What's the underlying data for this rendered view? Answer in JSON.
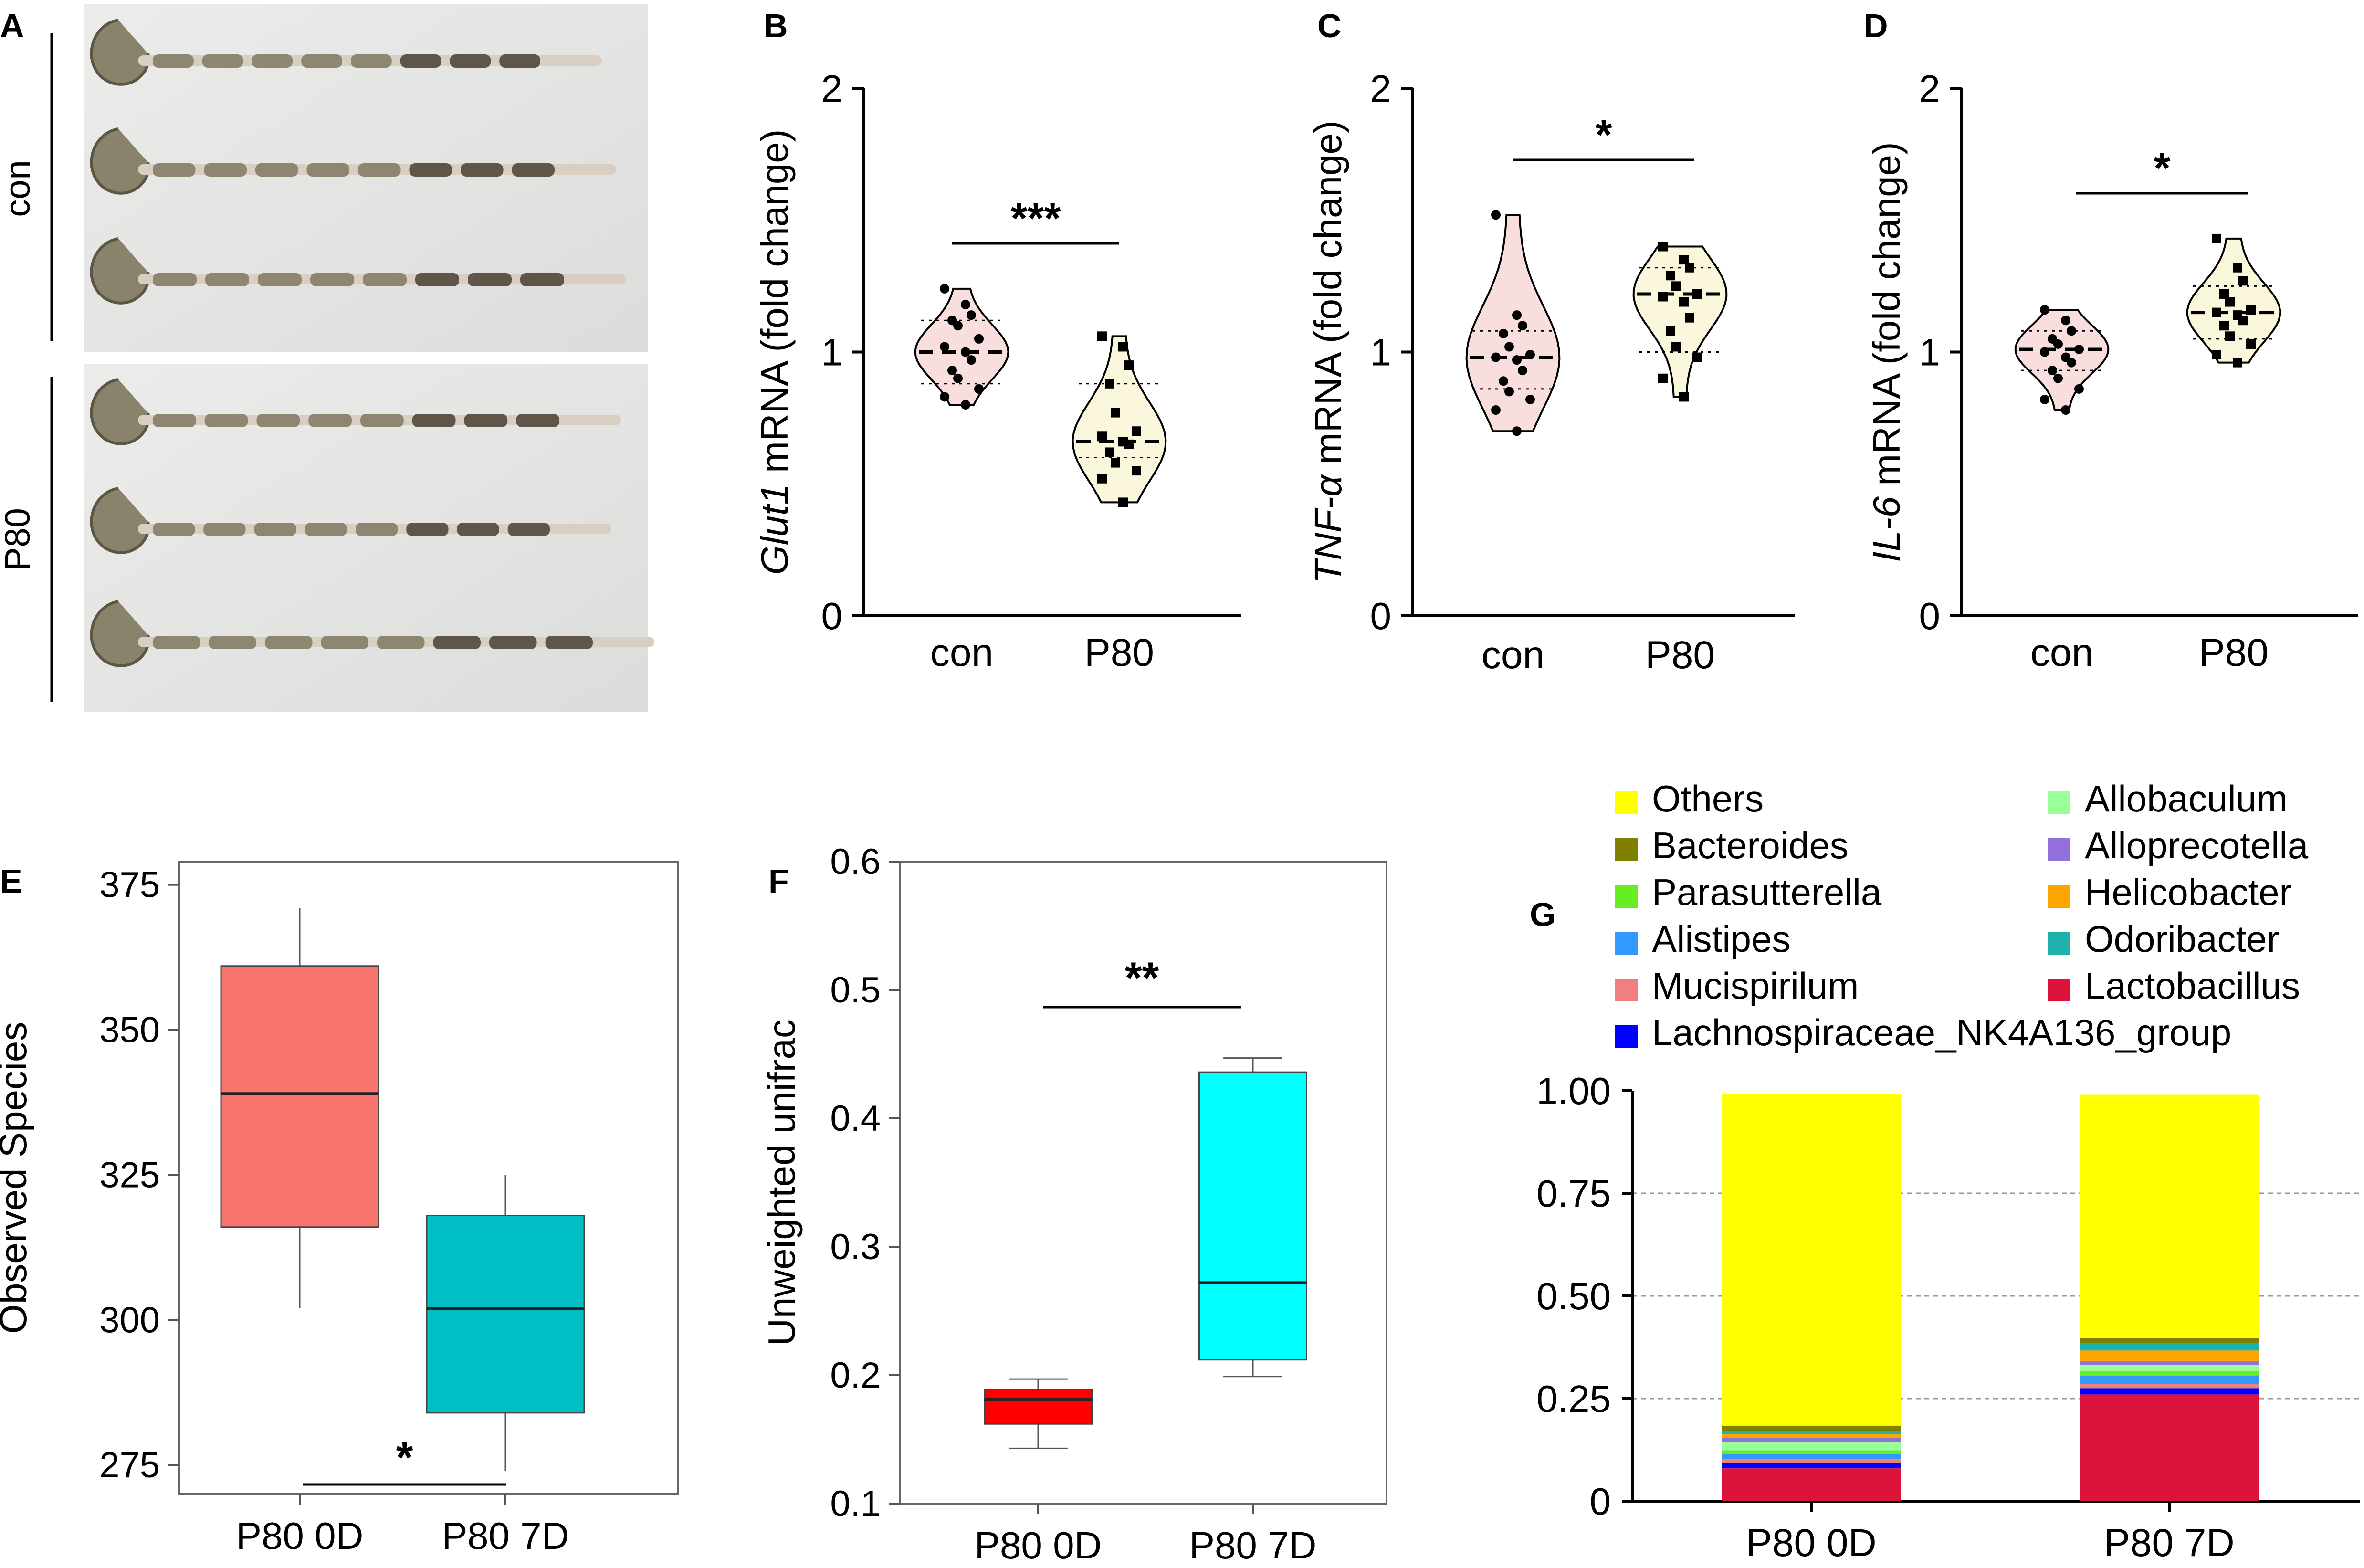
{
  "panel_labels": {
    "a": "A",
    "b": "B",
    "c": "C",
    "d": "D",
    "e": "E",
    "f": "F",
    "g": "G"
  },
  "panel_a": {
    "group_top": "con",
    "group_bottom": "P80"
  },
  "chart_data": [
    {
      "id": "B",
      "type": "violin",
      "title": "",
      "ylabel_italic": "Glut1",
      "ylabel_rest": " mRNA (fold change)",
      "categories": [
        "con",
        "P80"
      ],
      "ylim": [
        0,
        2
      ],
      "yticks": [
        "0",
        "1",
        "2"
      ],
      "significance": "***",
      "series": [
        {
          "name": "con",
          "marker": "circle",
          "fill": "#f9dede",
          "median": 1.0,
          "q1": 0.88,
          "q3": 1.12,
          "min": 0.8,
          "max": 1.24,
          "points": [
            1.24,
            1.18,
            1.14,
            1.12,
            1.1,
            1.05,
            1.02,
            1.0,
            0.97,
            0.93,
            0.9,
            0.86,
            0.83,
            0.8
          ]
        },
        {
          "name": "P80",
          "marker": "square",
          "fill": "#fbf7dc",
          "median": 0.66,
          "q1": 0.6,
          "q3": 0.88,
          "min": 0.43,
          "max": 1.06,
          "points": [
            1.06,
            1.02,
            0.95,
            0.88,
            0.77,
            0.7,
            0.68,
            0.66,
            0.65,
            0.62,
            0.58,
            0.55,
            0.52,
            0.43
          ]
        }
      ]
    },
    {
      "id": "C",
      "type": "violin",
      "title": "",
      "ylabel_italic": "TNF-α",
      "ylabel_rest": " mRNA (fold change)",
      "categories": [
        "con",
        "P80"
      ],
      "ylim": [
        0,
        2
      ],
      "yticks": [
        "0",
        "1",
        "2"
      ],
      "significance": "*",
      "series": [
        {
          "name": "con",
          "marker": "circle",
          "fill": "#f9dede",
          "median": 0.98,
          "q1": 0.86,
          "q3": 1.08,
          "min": 0.7,
          "max": 1.52,
          "points": [
            1.52,
            1.14,
            1.1,
            1.07,
            1.02,
            0.99,
            0.98,
            0.97,
            0.93,
            0.89,
            0.85,
            0.82,
            0.78,
            0.7
          ]
        },
        {
          "name": "P80",
          "marker": "square",
          "fill": "#fbf7dc",
          "median": 1.22,
          "q1": 1.0,
          "q3": 1.32,
          "min": 0.83,
          "max": 1.4,
          "points": [
            1.4,
            1.35,
            1.32,
            1.29,
            1.25,
            1.22,
            1.21,
            1.19,
            1.13,
            1.08,
            1.02,
            0.98,
            0.9,
            0.83
          ]
        }
      ]
    },
    {
      "id": "D",
      "type": "violin",
      "title": "",
      "ylabel_italic": "IL-6",
      "ylabel_rest": " mRNA (fold change)",
      "categories": [
        "con",
        "P80"
      ],
      "ylim": [
        0,
        2
      ],
      "yticks": [
        "0",
        "1",
        "2"
      ],
      "significance": "*",
      "series": [
        {
          "name": "con",
          "marker": "circle",
          "fill": "#f9dede",
          "median": 1.01,
          "q1": 0.93,
          "q3": 1.08,
          "min": 0.78,
          "max": 1.16,
          "points": [
            1.16,
            1.12,
            1.08,
            1.05,
            1.03,
            1.01,
            1.0,
            0.98,
            0.96,
            0.93,
            0.9,
            0.86,
            0.82,
            0.78
          ]
        },
        {
          "name": "P80",
          "marker": "square",
          "fill": "#fbf7dc",
          "median": 1.15,
          "q1": 1.05,
          "q3": 1.25,
          "min": 0.96,
          "max": 1.43,
          "points": [
            1.43,
            1.32,
            1.27,
            1.22,
            1.19,
            1.16,
            1.15,
            1.14,
            1.12,
            1.1,
            1.06,
            1.03,
            0.99,
            0.96
          ]
        }
      ]
    },
    {
      "id": "E",
      "type": "box",
      "title": "",
      "xlabel": "",
      "ylabel": "Observed Species",
      "categories": [
        "P80 0D",
        "P80 7D"
      ],
      "ylim": [
        270,
        379
      ],
      "yticks": [
        275,
        300,
        325,
        350,
        375
      ],
      "significance": "*",
      "series": [
        {
          "name": "P80 0D",
          "color": "#f8766d",
          "min": 302,
          "q1": 316,
          "median": 339,
          "q3": 361,
          "max": 371
        },
        {
          "name": "P80 7D",
          "color": "#00bfc4",
          "min": 274,
          "q1": 284,
          "median": 302,
          "q3": 318,
          "max": 325
        }
      ]
    },
    {
      "id": "F",
      "type": "box",
      "title": "",
      "xlabel": "",
      "ylabel": "Unweighted unifrac",
      "categories": [
        "P80 0D",
        "P80 7D"
      ],
      "ylim": [
        0.1,
        0.6
      ],
      "yticks": [
        0.1,
        0.2,
        0.3,
        0.4,
        0.5,
        0.6
      ],
      "significance": "**",
      "series": [
        {
          "name": "P80 0D",
          "color": "#ff0000",
          "min": 0.143,
          "q1": 0.162,
          "median": 0.181,
          "q3": 0.189,
          "max": 0.197
        },
        {
          "name": "P80 7D",
          "color": "#00ffff",
          "min": 0.199,
          "q1": 0.212,
          "median": 0.272,
          "q3": 0.436,
          "max": 0.447
        }
      ]
    },
    {
      "id": "G",
      "type": "bar",
      "stacked": true,
      "title": "",
      "xlabel": "",
      "ylabel": "",
      "categories": [
        "P80 0D",
        "P80 7D"
      ],
      "ylim": [
        0,
        1
      ],
      "yticks": [
        "0",
        "0.25",
        "0.50",
        "0.75",
        "1.00"
      ],
      "legend": [
        {
          "name": "Others",
          "color": "#ffff00"
        },
        {
          "name": "Bacteroides",
          "color": "#808000"
        },
        {
          "name": "Parasutterella",
          "color": "#66ee22"
        },
        {
          "name": "Alistipes",
          "color": "#3399ff"
        },
        {
          "name": "Mucispirilum",
          "color": "#f08080"
        },
        {
          "name": "Lachnospiraceae_NK4A136_group",
          "color": "#0000ff"
        },
        {
          "name": "Allobaculum",
          "color": "#99ff99"
        },
        {
          "name": "Alloprecotella",
          "color": "#9370db"
        },
        {
          "name": "Helicobacter",
          "color": "#ffa500"
        },
        {
          "name": "Odoribacter",
          "color": "#20b2aa"
        },
        {
          "name": "Lactobacillus",
          "color": "#dc143c"
        }
      ],
      "stack_order": [
        "Lactobacillus",
        "Lachnospiraceae_NK4A136_group",
        "Mucispirilum",
        "Alistipes",
        "Parasutterella",
        "Allobaculum",
        "Alloprecotella",
        "Helicobacter",
        "Odoribacter",
        "Bacteroides",
        "Others"
      ],
      "series": [
        {
          "name": "Lactobacillus",
          "values": [
            0.08,
            0.26
          ]
        },
        {
          "name": "Lachnospiraceae_NK4A136_group",
          "values": [
            0.012,
            0.015
          ]
        },
        {
          "name": "Mucispirilum",
          "values": [
            0.01,
            0.01
          ]
        },
        {
          "name": "Alistipes",
          "values": [
            0.012,
            0.02
          ]
        },
        {
          "name": "Parasutterella",
          "values": [
            0.01,
            0.012
          ]
        },
        {
          "name": "Allobaculum",
          "values": [
            0.02,
            0.015
          ]
        },
        {
          "name": "Alloprecotella",
          "values": [
            0.01,
            0.01
          ]
        },
        {
          "name": "Helicobacter",
          "values": [
            0.01,
            0.025
          ]
        },
        {
          "name": "Odoribacter",
          "values": [
            0.008,
            0.018
          ]
        },
        {
          "name": "Bacteroides",
          "values": [
            0.012,
            0.012
          ]
        },
        {
          "name": "Others",
          "values": [
            0.808,
            0.593
          ]
        }
      ]
    }
  ]
}
